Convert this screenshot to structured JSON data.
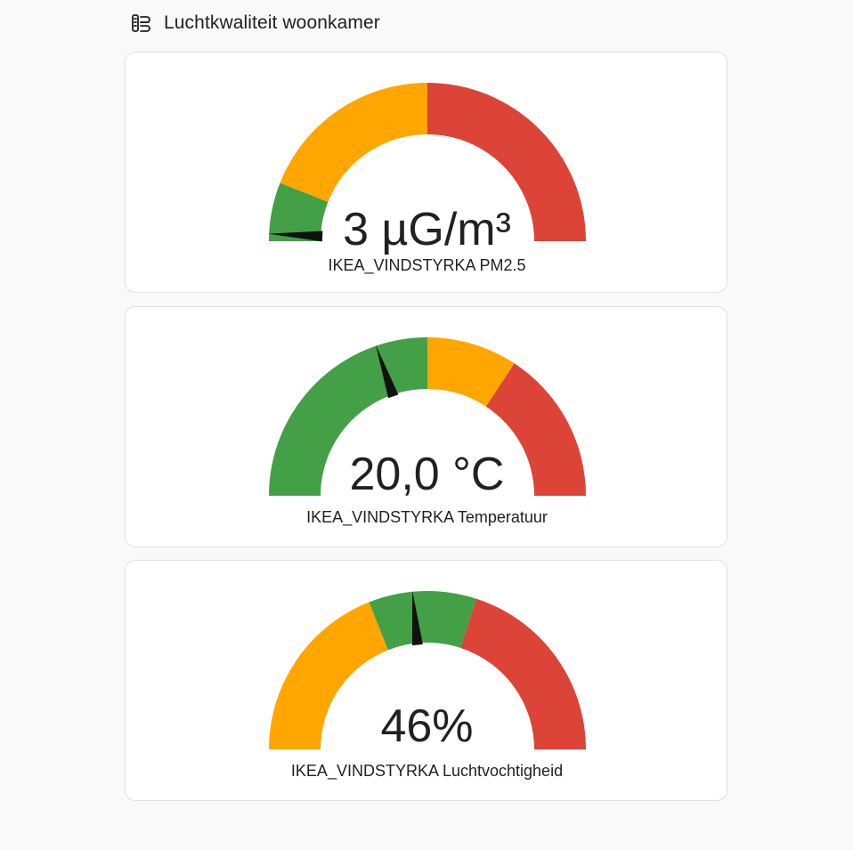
{
  "header": {
    "title": "Luchtkwaliteit woonkamer",
    "icon": "air-filter-icon"
  },
  "colors": {
    "green": "#43a047",
    "orange": "#ffa600",
    "red": "#db4437",
    "needle": "#111111"
  },
  "gauges": [
    {
      "id": "pm25",
      "value_text": "3 µG/m³",
      "name": "IKEA_VINDSTYRKA PM2.5",
      "needle_fraction": 0.015,
      "segments": [
        {
          "from": 0.0,
          "to": 0.12,
          "color": "green"
        },
        {
          "from": 0.12,
          "to": 0.5,
          "color": "orange"
        },
        {
          "from": 0.5,
          "to": 1.0,
          "color": "red"
        }
      ]
    },
    {
      "id": "temperature",
      "value_text": "20,0 °C",
      "name": "IKEA_VINDSTYRKA Temperatuur",
      "needle_fraction": 0.395,
      "segments": [
        {
          "from": 0.0,
          "to": 0.5,
          "color": "green"
        },
        {
          "from": 0.5,
          "to": 0.685,
          "color": "orange"
        },
        {
          "from": 0.685,
          "to": 1.0,
          "color": "red"
        }
      ]
    },
    {
      "id": "humidity",
      "value_text": "46%",
      "name": "IKEA_VINDSTYRKA Luchtvochtigheid",
      "needle_fraction": 0.47,
      "segments": [
        {
          "from": 0.0,
          "to": 0.38,
          "color": "orange"
        },
        {
          "from": 0.38,
          "to": 0.6,
          "color": "green"
        },
        {
          "from": 0.6,
          "to": 1.0,
          "color": "red"
        }
      ]
    }
  ]
}
